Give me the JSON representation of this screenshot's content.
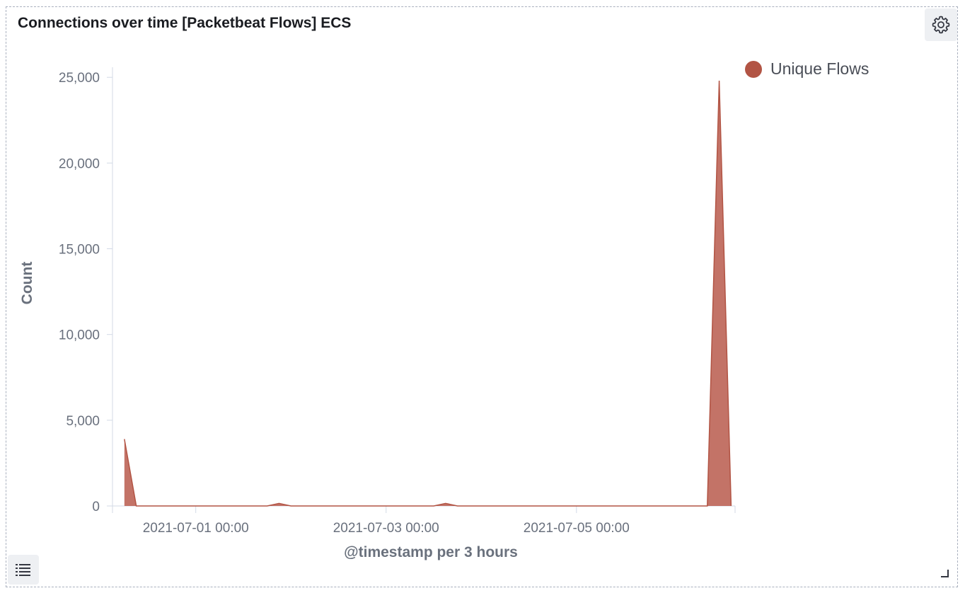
{
  "panel": {
    "title": "Connections over time [Packetbeat Flows] ECS"
  },
  "icons": {
    "settings": "gear-icon",
    "legend_toggle": "list-icon",
    "resize": "resize-corner-icon"
  },
  "colors": {
    "series": "#c06c5f",
    "series_stroke": "#b25444",
    "axis_label": "#6a717d",
    "tick_text": "#69707d",
    "axis_line": "#d3dae6"
  },
  "chart_data": {
    "type": "area",
    "title": "Connections over time [Packetbeat Flows] ECS",
    "xlabel": "@timestamp per 3 hours",
    "ylabel": "Count",
    "ylim": [
      0,
      26000
    ],
    "xlim": [
      "2021-06-30 03:00",
      "2021-07-06 16:00"
    ],
    "yticks": [
      0,
      5000,
      10000,
      15000,
      20000,
      25000
    ],
    "ytick_labels": [
      "0",
      "5,000",
      "10,000",
      "15,000",
      "20,000",
      "25,000"
    ],
    "xticks": [
      "2021-07-01 00:00",
      "2021-07-03 00:00",
      "2021-07-05 00:00"
    ],
    "xtick_labels": [
      "2021-07-01 00:00",
      "2021-07-03 00:00",
      "2021-07-05 00:00"
    ],
    "grid": false,
    "legend_position": "right",
    "series": [
      {
        "name": "Unique Flows",
        "points": [
          [
            "2021-06-30 06:00",
            3900
          ],
          [
            "2021-06-30 09:00",
            0
          ],
          [
            "2021-06-30 12:00",
            0
          ],
          [
            "2021-07-01 18:00",
            0
          ],
          [
            "2021-07-01 21:00",
            150
          ],
          [
            "2021-07-02 00:00",
            0
          ],
          [
            "2021-07-03 12:00",
            0
          ],
          [
            "2021-07-03 15:00",
            150
          ],
          [
            "2021-07-03 18:00",
            0
          ],
          [
            "2021-07-06 06:00",
            0
          ],
          [
            "2021-07-06 09:00",
            0
          ],
          [
            "2021-07-06 12:00",
            24800
          ],
          [
            "2021-07-06 15:00",
            0
          ]
        ]
      }
    ]
  }
}
